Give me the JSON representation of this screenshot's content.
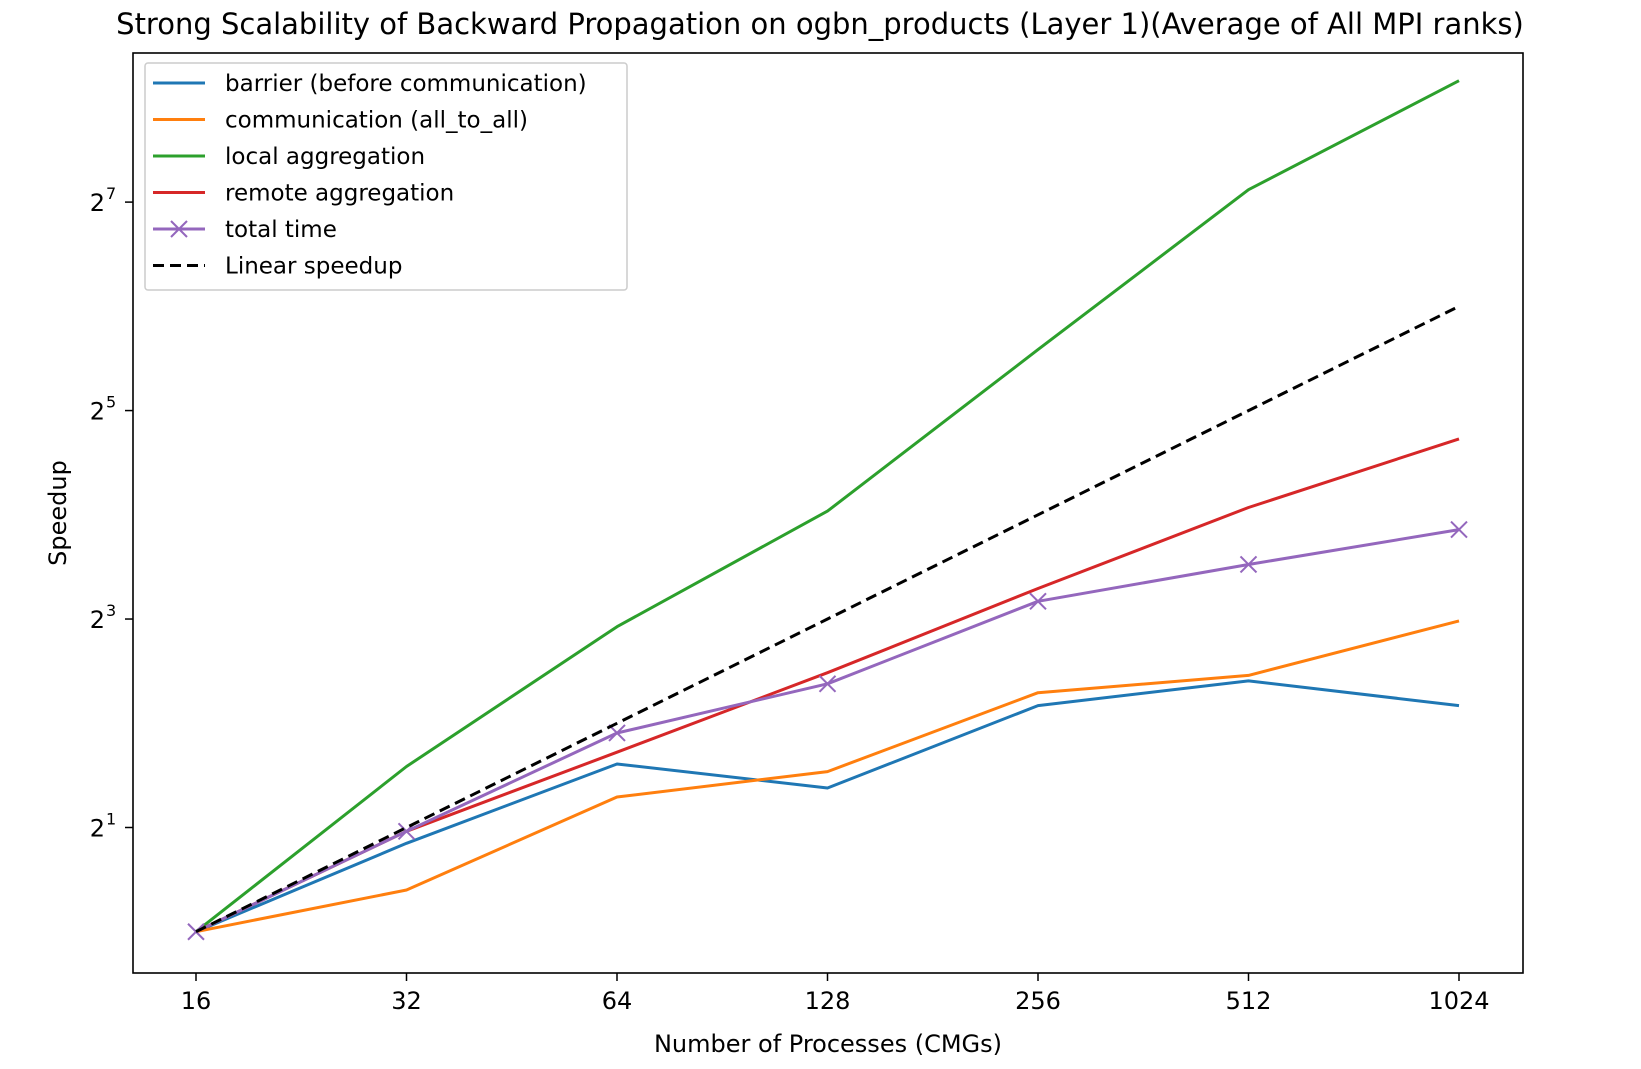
{
  "chart_data": {
    "type": "line",
    "title": "Strong Scalability of Backward Propagation on ogbn_products (Layer 1)(Average of All MPI ranks)",
    "xlabel": "Number of Processes (CMGs)",
    "ylabel": "Speedup",
    "x_scale": "log2",
    "y_scale": "log2",
    "x": [
      16,
      32,
      64,
      128,
      256,
      512,
      1024
    ],
    "x_tick_labels": [
      "16",
      "32",
      "64",
      "128",
      "256",
      "512",
      "1024"
    ],
    "y_ticks": [
      {
        "base": "2",
        "exp": "1",
        "value": 2
      },
      {
        "base": "2",
        "exp": "3",
        "value": 8
      },
      {
        "base": "2",
        "exp": "5",
        "value": 32
      },
      {
        "base": "2",
        "exp": "7",
        "value": 128
      }
    ],
    "ylim": [
      0.76,
      345
    ],
    "grid": false,
    "legend_position": "top-left",
    "series": [
      {
        "name": "barrier (before communication)",
        "color": "#1f77b4",
        "style": "solid",
        "marker": "none",
        "values": [
          1.0,
          1.8,
          3.05,
          2.6,
          4.5,
          5.3,
          4.5
        ]
      },
      {
        "name": "communication (all_to_all)",
        "color": "#ff7f0e",
        "style": "solid",
        "marker": "none",
        "values": [
          1.0,
          1.32,
          2.45,
          2.9,
          4.9,
          5.5,
          7.9
        ]
      },
      {
        "name": "local aggregation",
        "color": "#2ca02c",
        "style": "solid",
        "marker": "none",
        "values": [
          1.0,
          3.0,
          7.6,
          16.4,
          48.0,
          139.0,
          287.0
        ]
      },
      {
        "name": "remote aggregation",
        "color": "#d62728",
        "style": "solid",
        "marker": "none",
        "values": [
          1.0,
          1.95,
          3.3,
          5.6,
          9.8,
          16.8,
          26.5
        ]
      },
      {
        "name": "total time",
        "color": "#9467bd",
        "style": "solid",
        "marker": "x",
        "values": [
          1.0,
          1.95,
          3.75,
          5.2,
          9.0,
          11.5,
          14.5
        ]
      },
      {
        "name": "Linear speedup",
        "color": "#000000",
        "style": "dashed",
        "marker": "none",
        "values": [
          1,
          2,
          4,
          8,
          16,
          32,
          64
        ]
      }
    ]
  }
}
